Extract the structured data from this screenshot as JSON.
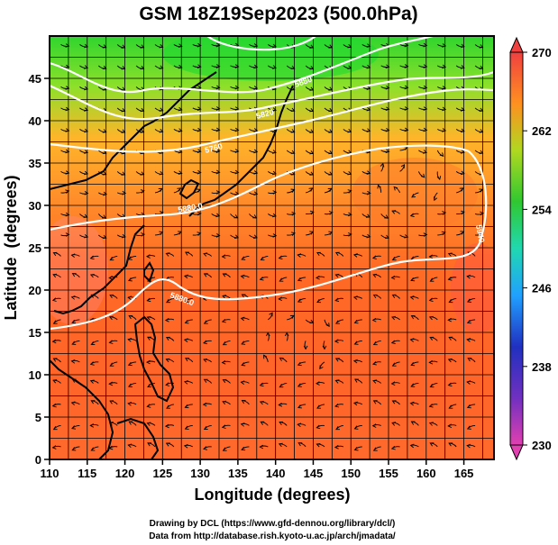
{
  "title": "GSM 18Z19Sep2023 (500.0hPa)",
  "xaxis": {
    "label": "Longitude (degrees)",
    "ticks": [
      "110",
      "115",
      "120",
      "125",
      "130",
      "135",
      "140",
      "145",
      "150",
      "155",
      "160",
      "165"
    ],
    "range": [
      110,
      169
    ]
  },
  "yaxis": {
    "label": "Latitude  (degrees)",
    "ticks": [
      "0",
      "5",
      "10",
      "15",
      "20",
      "25",
      "30",
      "35",
      "40",
      "45"
    ],
    "range": [
      0,
      50
    ]
  },
  "colorbar": {
    "ticks": [
      "270",
      "262",
      "254",
      "246",
      "238",
      "230"
    ],
    "range": [
      230,
      270
    ]
  },
  "contours": [
    {
      "label": "5940",
      "lat_hint": 50
    },
    {
      "label": "5880",
      "lat_hint": 45
    },
    {
      "label": "5820",
      "lat_hint": 40
    },
    {
      "label": "5760",
      "lat_hint": 38
    },
    {
      "label": "5880.0",
      "lat_hint": 30
    },
    {
      "label": "5880.0",
      "lat_hint": 20
    },
    {
      "label": "5940",
      "lat_hint": 31
    }
  ],
  "credits": {
    "line1": "Drawing by DCL (https://www.gfd-dennou.org/library/dcl/)",
    "line2": "Data from http://database.rish.kyoto-u.ac.jp/arch/jmadata/"
  },
  "colors": {
    "frame": "#000000",
    "contour": "#ffffff",
    "colorbar_stops": [
      "#e040a0",
      "#3030c0",
      "#20a0ff",
      "#20d8c0",
      "#30c830",
      "#a0d820",
      "#ffa020",
      "#ff6020",
      "#f04040"
    ]
  }
}
